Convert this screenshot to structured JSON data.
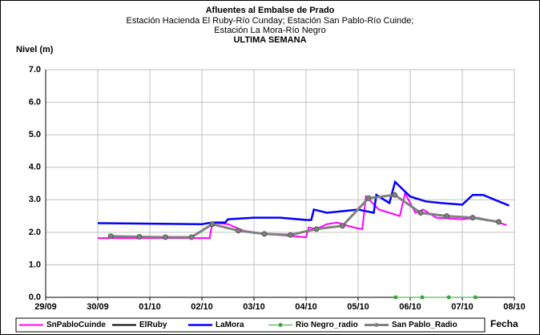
{
  "chart_data": {
    "type": "line",
    "title": "Afluentes al Embalse de Prado",
    "subtitle": [
      "Estación Hacienda El Ruby-Río Cunday; Estación San Pablo-Río Cuinde;",
      "Estación La Mora-Río Negro"
    ],
    "subtitle2": "ULTIMA SEMANA",
    "y_label": "Nivel (m)",
    "x_label": "Fecha",
    "xlim": [
      0,
      9
    ],
    "xticks": [
      {
        "value": 0,
        "label": "29/09"
      },
      {
        "value": 1,
        "label": "30/09"
      },
      {
        "value": 2,
        "label": "01/10"
      },
      {
        "value": 3,
        "label": "02/10"
      },
      {
        "value": 4,
        "label": "03/10"
      },
      {
        "value": 5,
        "label": "04/10"
      },
      {
        "value": 6,
        "label": "05/10"
      },
      {
        "value": 7,
        "label": "06/10"
      },
      {
        "value": 8,
        "label": "07/10"
      },
      {
        "value": 9,
        "label": "08/10"
      }
    ],
    "ylim": [
      0,
      7
    ],
    "yticks": [
      {
        "value": 0,
        "label": "0.0"
      },
      {
        "value": 1,
        "label": "1.0"
      },
      {
        "value": 2,
        "label": "2.0"
      },
      {
        "value": 3,
        "label": "3.0"
      },
      {
        "value": 4,
        "label": "4.0"
      },
      {
        "value": 5,
        "label": "5.0"
      },
      {
        "value": 6,
        "label": "6.0"
      },
      {
        "value": 7,
        "label": "7.0"
      }
    ],
    "grid": true,
    "legend": "bottom",
    "series": [
      {
        "name": "SnPabloCuinde",
        "color": "#ff00ff",
        "marker": false,
        "x": [
          1.0,
          3.15,
          3.2,
          3.5,
          3.8,
          4.2,
          4.6,
          5.0,
          5.05,
          5.2,
          5.4,
          5.6,
          5.8,
          6.0,
          6.08,
          6.15,
          6.4,
          6.6,
          6.8,
          6.9,
          7.1,
          7.25,
          7.5,
          8.0,
          8.3,
          8.7,
          8.85
        ],
        "values": [
          1.82,
          1.82,
          2.3,
          2.25,
          2.05,
          1.95,
          1.9,
          1.85,
          2.15,
          2.1,
          2.25,
          2.3,
          2.2,
          2.12,
          2.1,
          3.1,
          2.7,
          2.6,
          2.5,
          3.2,
          2.6,
          2.7,
          2.45,
          2.4,
          2.45,
          2.3,
          2.22
        ]
      },
      {
        "name": "ElRuby",
        "color": "#000000",
        "marker": false,
        "x": [],
        "values": []
      },
      {
        "name": "LaMora",
        "color": "#0000ff",
        "marker": false,
        "x": [
          1.0,
          3.0,
          3.2,
          3.45,
          3.5,
          4.0,
          4.5,
          5.0,
          5.1,
          5.15,
          5.4,
          5.7,
          6.0,
          6.3,
          6.35,
          6.6,
          6.71,
          7.0,
          7.3,
          7.6,
          8.0,
          8.2,
          8.4,
          8.7,
          8.9
        ],
        "values": [
          2.28,
          2.25,
          2.3,
          2.3,
          2.4,
          2.45,
          2.45,
          2.38,
          2.38,
          2.7,
          2.6,
          2.65,
          2.7,
          2.6,
          3.15,
          2.9,
          3.55,
          3.1,
          2.95,
          2.9,
          2.85,
          3.15,
          3.15,
          2.95,
          2.82
        ]
      },
      {
        "name": "Rio Negro_radio",
        "color": "#33aa33",
        "marker": true,
        "x": [
          6.72,
          7.23,
          7.74,
          8.25
        ],
        "values": [
          0,
          0,
          0,
          0
        ]
      },
      {
        "name": "San Pablo_Radio",
        "color": "#808080",
        "marker": true,
        "x": [
          1.25,
          1.8,
          2.3,
          2.8,
          3.2,
          3.7,
          4.2,
          4.7,
          5.2,
          5.7,
          6.2,
          6.7,
          7.2,
          7.7,
          8.2,
          8.7
        ],
        "values": [
          1.88,
          1.86,
          1.85,
          1.85,
          2.25,
          2.05,
          1.95,
          1.92,
          2.1,
          2.2,
          3.05,
          3.15,
          2.6,
          2.5,
          2.45,
          2.32
        ]
      }
    ]
  }
}
